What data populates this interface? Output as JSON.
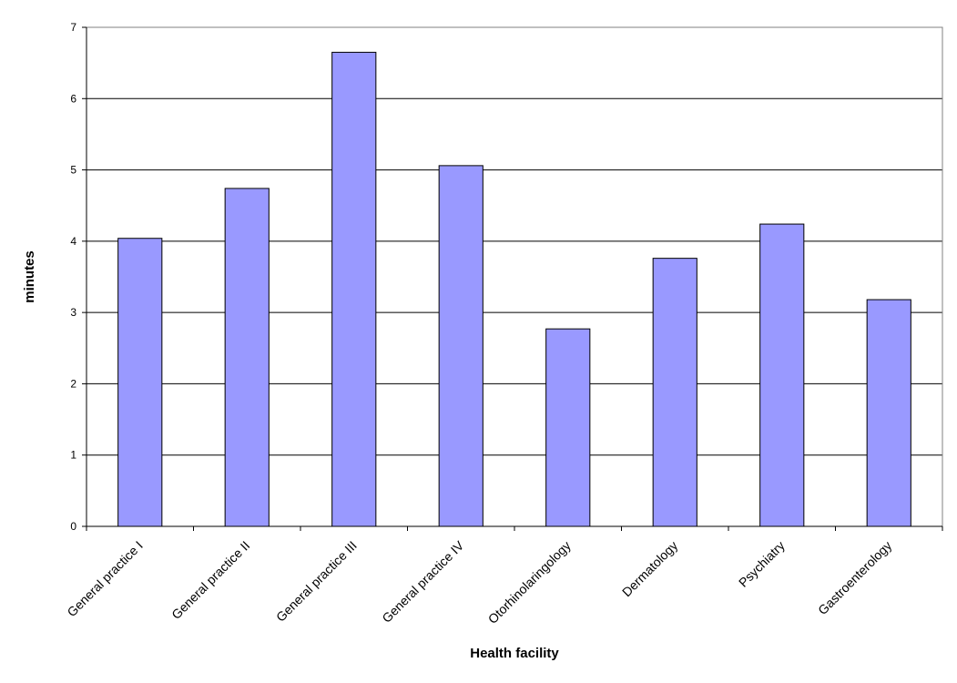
{
  "chart_data": {
    "type": "bar",
    "title": "",
    "xlabel": "Health facility",
    "ylabel": "minutes",
    "categories": [
      "General practice I",
      "General practice II",
      "General practice III",
      "General practice IV",
      "Otorhinolaringology",
      "Dermatology",
      "Psychiatry",
      "Gastroenterology"
    ],
    "values": [
      4.04,
      4.74,
      6.65,
      5.06,
      2.77,
      3.76,
      4.24,
      3.18
    ],
    "ylim": [
      0,
      7
    ],
    "yticks": [
      "0",
      "1",
      "2",
      "3",
      "4",
      "5",
      "6",
      "7"
    ],
    "grid": true,
    "legend": "none",
    "colors": {
      "bar_fill": "#9999ff",
      "bar_stroke": "#000000",
      "gridline": "#000000",
      "plot_border": "#808080"
    }
  }
}
